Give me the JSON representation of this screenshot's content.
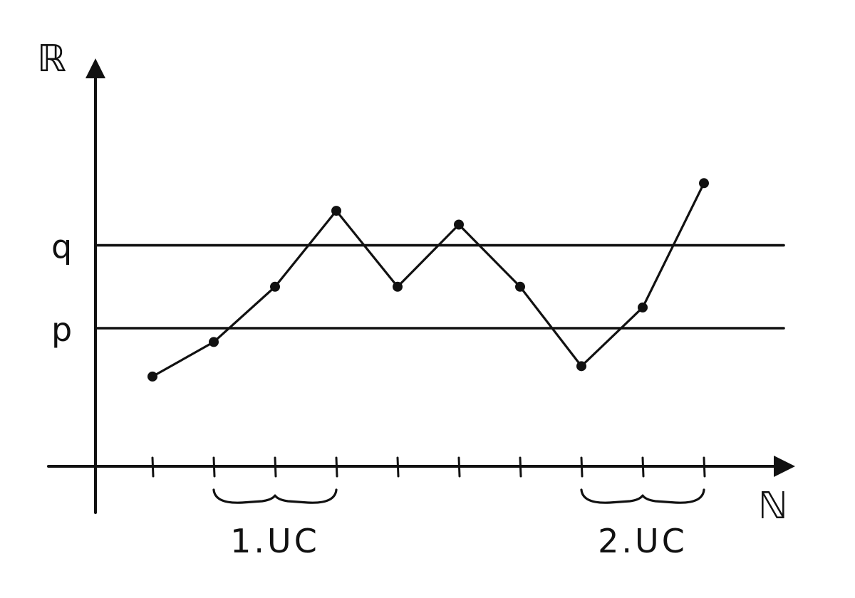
{
  "chart_data": {
    "type": "line",
    "xlabel": "ℕ",
    "ylabel": "ℝ",
    "reference_levels": [
      {
        "label": "q",
        "value": 3.2
      },
      {
        "label": "p",
        "value": 2.0
      }
    ],
    "x": [
      1,
      2,
      3,
      4,
      5,
      6,
      7,
      8,
      9,
      10
    ],
    "y": [
      1.3,
      1.8,
      2.6,
      3.7,
      2.6,
      3.5,
      2.6,
      1.45,
      2.3,
      4.1
    ],
    "x_ticks": [
      1,
      2,
      3,
      4,
      5,
      6,
      7,
      8,
      9,
      10
    ],
    "annotations": [
      {
        "label": "1.UC",
        "from_x": 2,
        "to_x": 4
      },
      {
        "label": "2.UC",
        "from_x": 8,
        "to_x": 10
      }
    ],
    "ylim": [
      0,
      6
    ],
    "xlim": [
      0,
      11.5
    ],
    "grid": false
  },
  "colors": {
    "ink": "#111111",
    "background": "#ffffff"
  }
}
